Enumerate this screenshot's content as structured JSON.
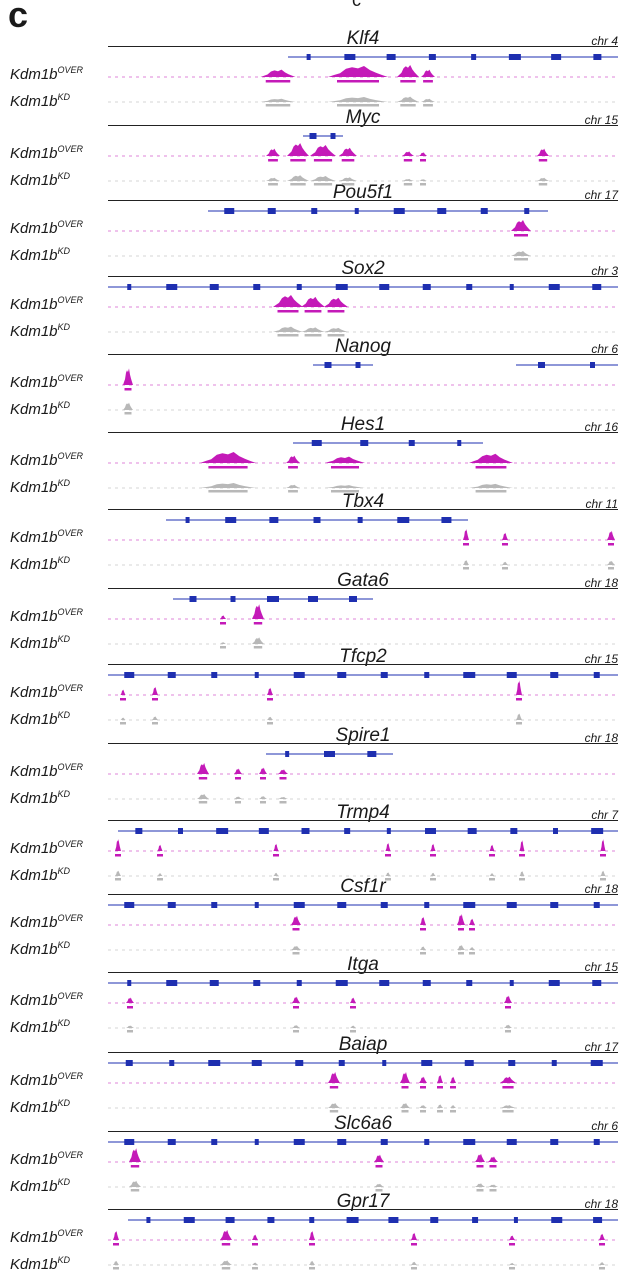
{
  "panel_label": "c",
  "top_fragment": "c",
  "colors": {
    "overexpression": "#c41ab8",
    "knockdown": "#b8b8b8",
    "gene_model": "#1e2fb0"
  },
  "track_labels": {
    "base": "Kdm1b",
    "over_sup": "OVER",
    "kd_sup": "KD"
  },
  "loci": [
    {
      "gene": "Klf4",
      "chr": "chr 4"
    },
    {
      "gene": "Myc",
      "chr": "chr 15"
    },
    {
      "gene": "Pou5f1",
      "chr": "chr 17"
    },
    {
      "gene": "Sox2",
      "chr": "chr 3"
    },
    {
      "gene": "Nanog",
      "chr": "chr 6"
    },
    {
      "gene": "Hes1",
      "chr": "chr 16"
    },
    {
      "gene": "Tbx4",
      "chr": "chr 11"
    },
    {
      "gene": "Gata6",
      "chr": "chr 18"
    },
    {
      "gene": "Tfcp2",
      "chr": "chr 15"
    },
    {
      "gene": "Spire1",
      "chr": "chr 18"
    },
    {
      "gene": "Trmp4",
      "chr": "chr 7"
    },
    {
      "gene": "Csf1r",
      "chr": "chr 18"
    },
    {
      "gene": "Itga",
      "chr": "chr 15"
    },
    {
      "gene": "Baiap",
      "chr": "chr 17"
    },
    {
      "gene": "Slc6a6",
      "chr": "chr 6"
    },
    {
      "gene": "Gpr17",
      "chr": "chr 18"
    }
  ]
}
